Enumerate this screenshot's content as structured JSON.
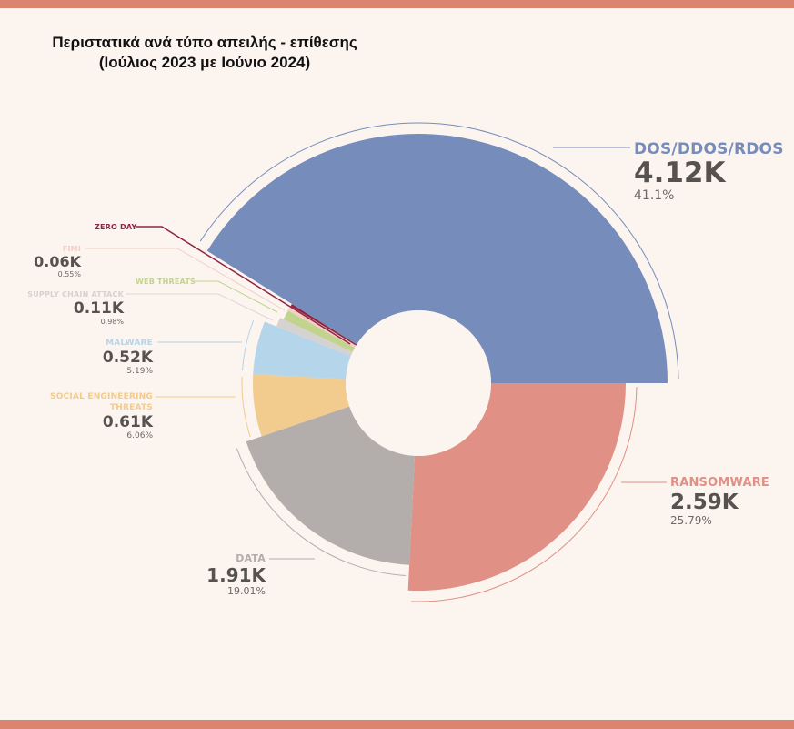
{
  "title": {
    "line1": "Περιστατικά ανά τύπο απειλής - επίθεσης",
    "line2": "(Ιούλιος 2023 με Ιούνιο 2024)"
  },
  "chart_data": {
    "type": "pie",
    "variant": "variable-radius donut (rose)",
    "title": "Περιστατικά ανά τύπο απειλής - επίθεσης (Ιούλιος 2023 με Ιούνιο 2024)",
    "categories": [
      "DOS/DDOS/RDOS",
      "RANSOMWARE",
      "DATA",
      "SOCIAL ENGINEERING THREATS",
      "MALWARE",
      "SUPPLY CHAIN ATTACK",
      "WEB THREATS",
      "FIMI",
      "ZERO DAY"
    ],
    "values_k": [
      4.12,
      2.59,
      1.91,
      0.61,
      0.52,
      0.11,
      null,
      0.06,
      null
    ],
    "value_labels": [
      "4.12K",
      "2.59K",
      "1.91K",
      "0.61K",
      "0.52K",
      "0.11K",
      "",
      "0.06K",
      ""
    ],
    "percentages": [
      41.1,
      25.79,
      19.01,
      6.06,
      5.19,
      0.98,
      null,
      0.55,
      null
    ],
    "percent_labels": [
      "41.1%",
      "25.79%",
      "19.01%",
      "6.06%",
      "5.19%",
      "0.98%",
      "",
      "0.55%",
      ""
    ],
    "colors": [
      "#768cbb",
      "#e09084",
      "#b3aeab",
      "#f2cb8e",
      "#b4d5ea",
      "#d6d2d0",
      "#c2d38e",
      "#f1cfc6",
      "#8f2443"
    ],
    "legend": "inline labels with leader lines"
  },
  "labels": {
    "dos": {
      "name": "DOS/DDOS/RDOS",
      "value": "4.12K",
      "pct": "41.1%"
    },
    "ransomware": {
      "name": "RANSOMWARE",
      "value": "2.59K",
      "pct": "25.79%"
    },
    "data": {
      "name": "DATA",
      "value": "1.91K",
      "pct": "19.01%"
    },
    "social": {
      "name1": "SOCIAL ENGINEERING",
      "name2": "THREATS",
      "value": "0.61K",
      "pct": "6.06%"
    },
    "malware": {
      "name": "MALWARE",
      "value": "0.52K",
      "pct": "5.19%"
    },
    "supply": {
      "name": "SUPPLY CHAIN ATTACK",
      "value": "0.11K",
      "pct": "0.98%"
    },
    "web": {
      "name": "WEB THREATS"
    },
    "fimi": {
      "name": "FIMI",
      "value": "0.06K",
      "pct": "0.55%"
    },
    "zeroday": {
      "name": "ZERO DAY"
    }
  }
}
